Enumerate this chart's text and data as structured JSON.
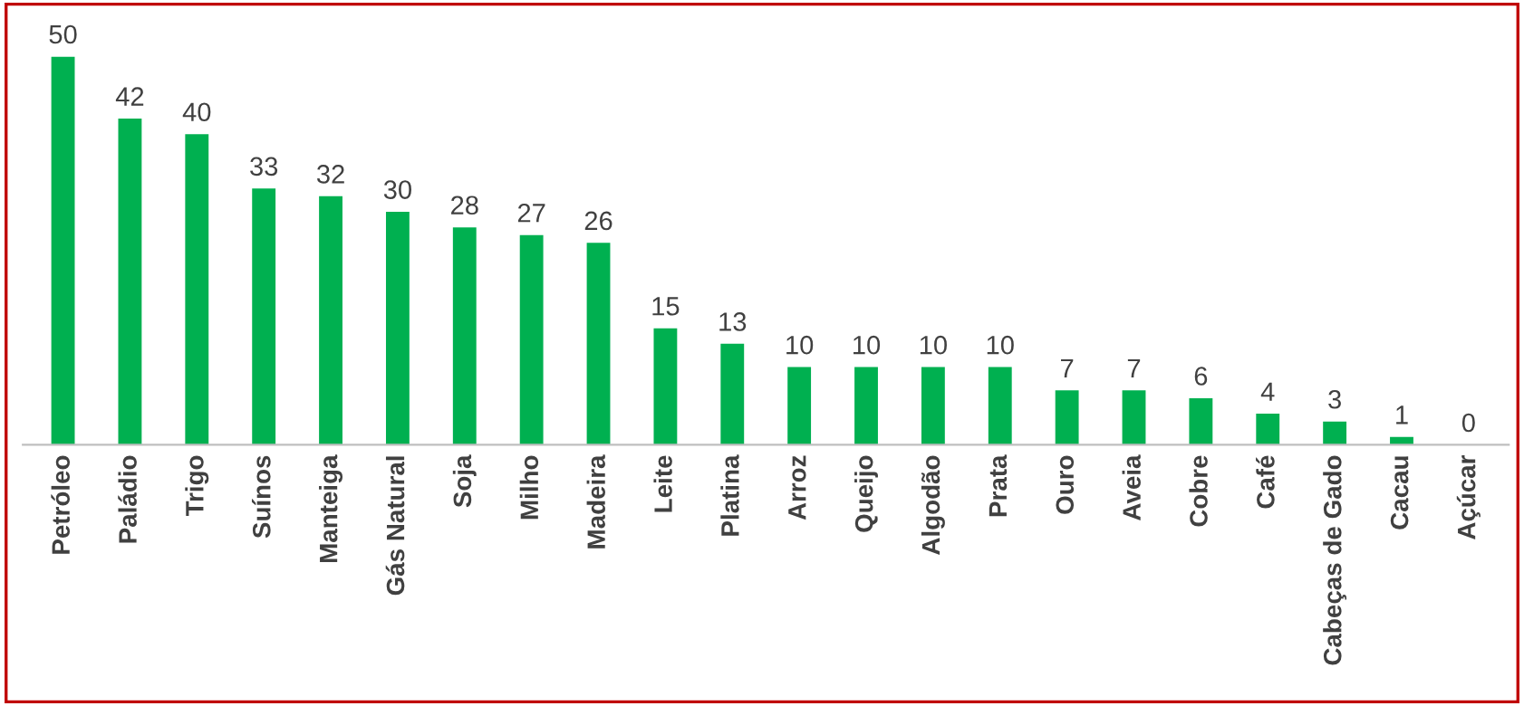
{
  "chart_data": {
    "type": "bar",
    "categories": [
      "Petróleo",
      "Paládio",
      "Trigo",
      "Suínos",
      "Manteiga",
      "Gás Natural",
      "Soja",
      "Milho",
      "Madeira",
      "Leite",
      "Platina",
      "Arroz",
      "Queijo",
      "Algodão",
      "Prata",
      "Ouro",
      "Aveia",
      "Cobre",
      "Café",
      "Cabeças de Gado",
      "Cacau",
      "Açúcar"
    ],
    "values": [
      50,
      42,
      40,
      33,
      32,
      30,
      28,
      27,
      26,
      15,
      13,
      10,
      10,
      10,
      10,
      7,
      7,
      6,
      4,
      3,
      1,
      0
    ],
    "color": "#00b050",
    "data_labels": true,
    "grid": false,
    "legend": false
  }
}
